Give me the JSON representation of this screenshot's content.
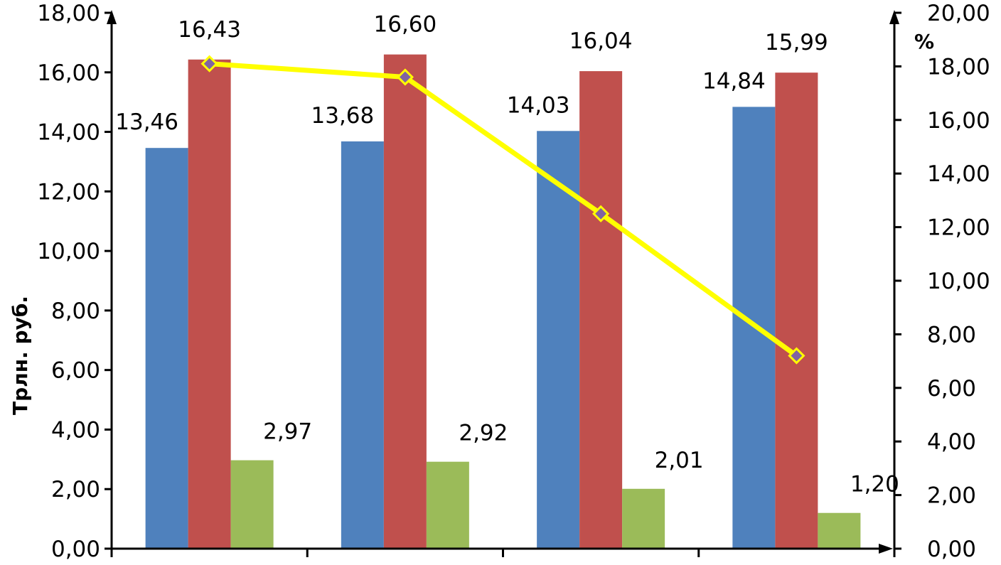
{
  "chart_data": {
    "type": "bar",
    "title": "",
    "categories": [
      "",
      "",
      "",
      ""
    ],
    "series": [
      {
        "values": [
          13.46,
          13.68,
          14.03,
          14.84
        ],
        "labels": [
          "13,46",
          "13,68",
          "14,03",
          "14,84"
        ],
        "color": "#4f81bd"
      },
      {
        "values": [
          16.43,
          16.6,
          16.04,
          15.99
        ],
        "labels": [
          "16,43",
          "16,60",
          "16,04",
          "15,99"
        ],
        "color": "#c0504d"
      },
      {
        "values": [
          2.97,
          2.92,
          2.01,
          1.2
        ],
        "labels": [
          "2,97",
          "2,92",
          "2,01",
          "1,20"
        ],
        "color": "#9bbb59"
      }
    ],
    "line_series": {
      "axis": "right",
      "values": [
        18.1,
        17.6,
        12.5,
        7.2
      ],
      "color": "#ffff00",
      "marker_color": "#8064a2"
    },
    "ylabel": "Трлн. руб.",
    "y2label": "%",
    "ylim": [
      0,
      18
    ],
    "y2lim": [
      0,
      20
    ],
    "y_ticks": [
      "0,00",
      "2,00",
      "4,00",
      "6,00",
      "8,00",
      "10,00",
      "12,00",
      "14,00",
      "16,00",
      "18,00"
    ],
    "y2_ticks": [
      "0,00",
      "2,00",
      "4,00",
      "6,00",
      "8,00",
      "10,00",
      "12,00",
      "14,00",
      "16,00",
      "18,00",
      "20,00"
    ],
    "grid": false,
    "legend": "none"
  }
}
